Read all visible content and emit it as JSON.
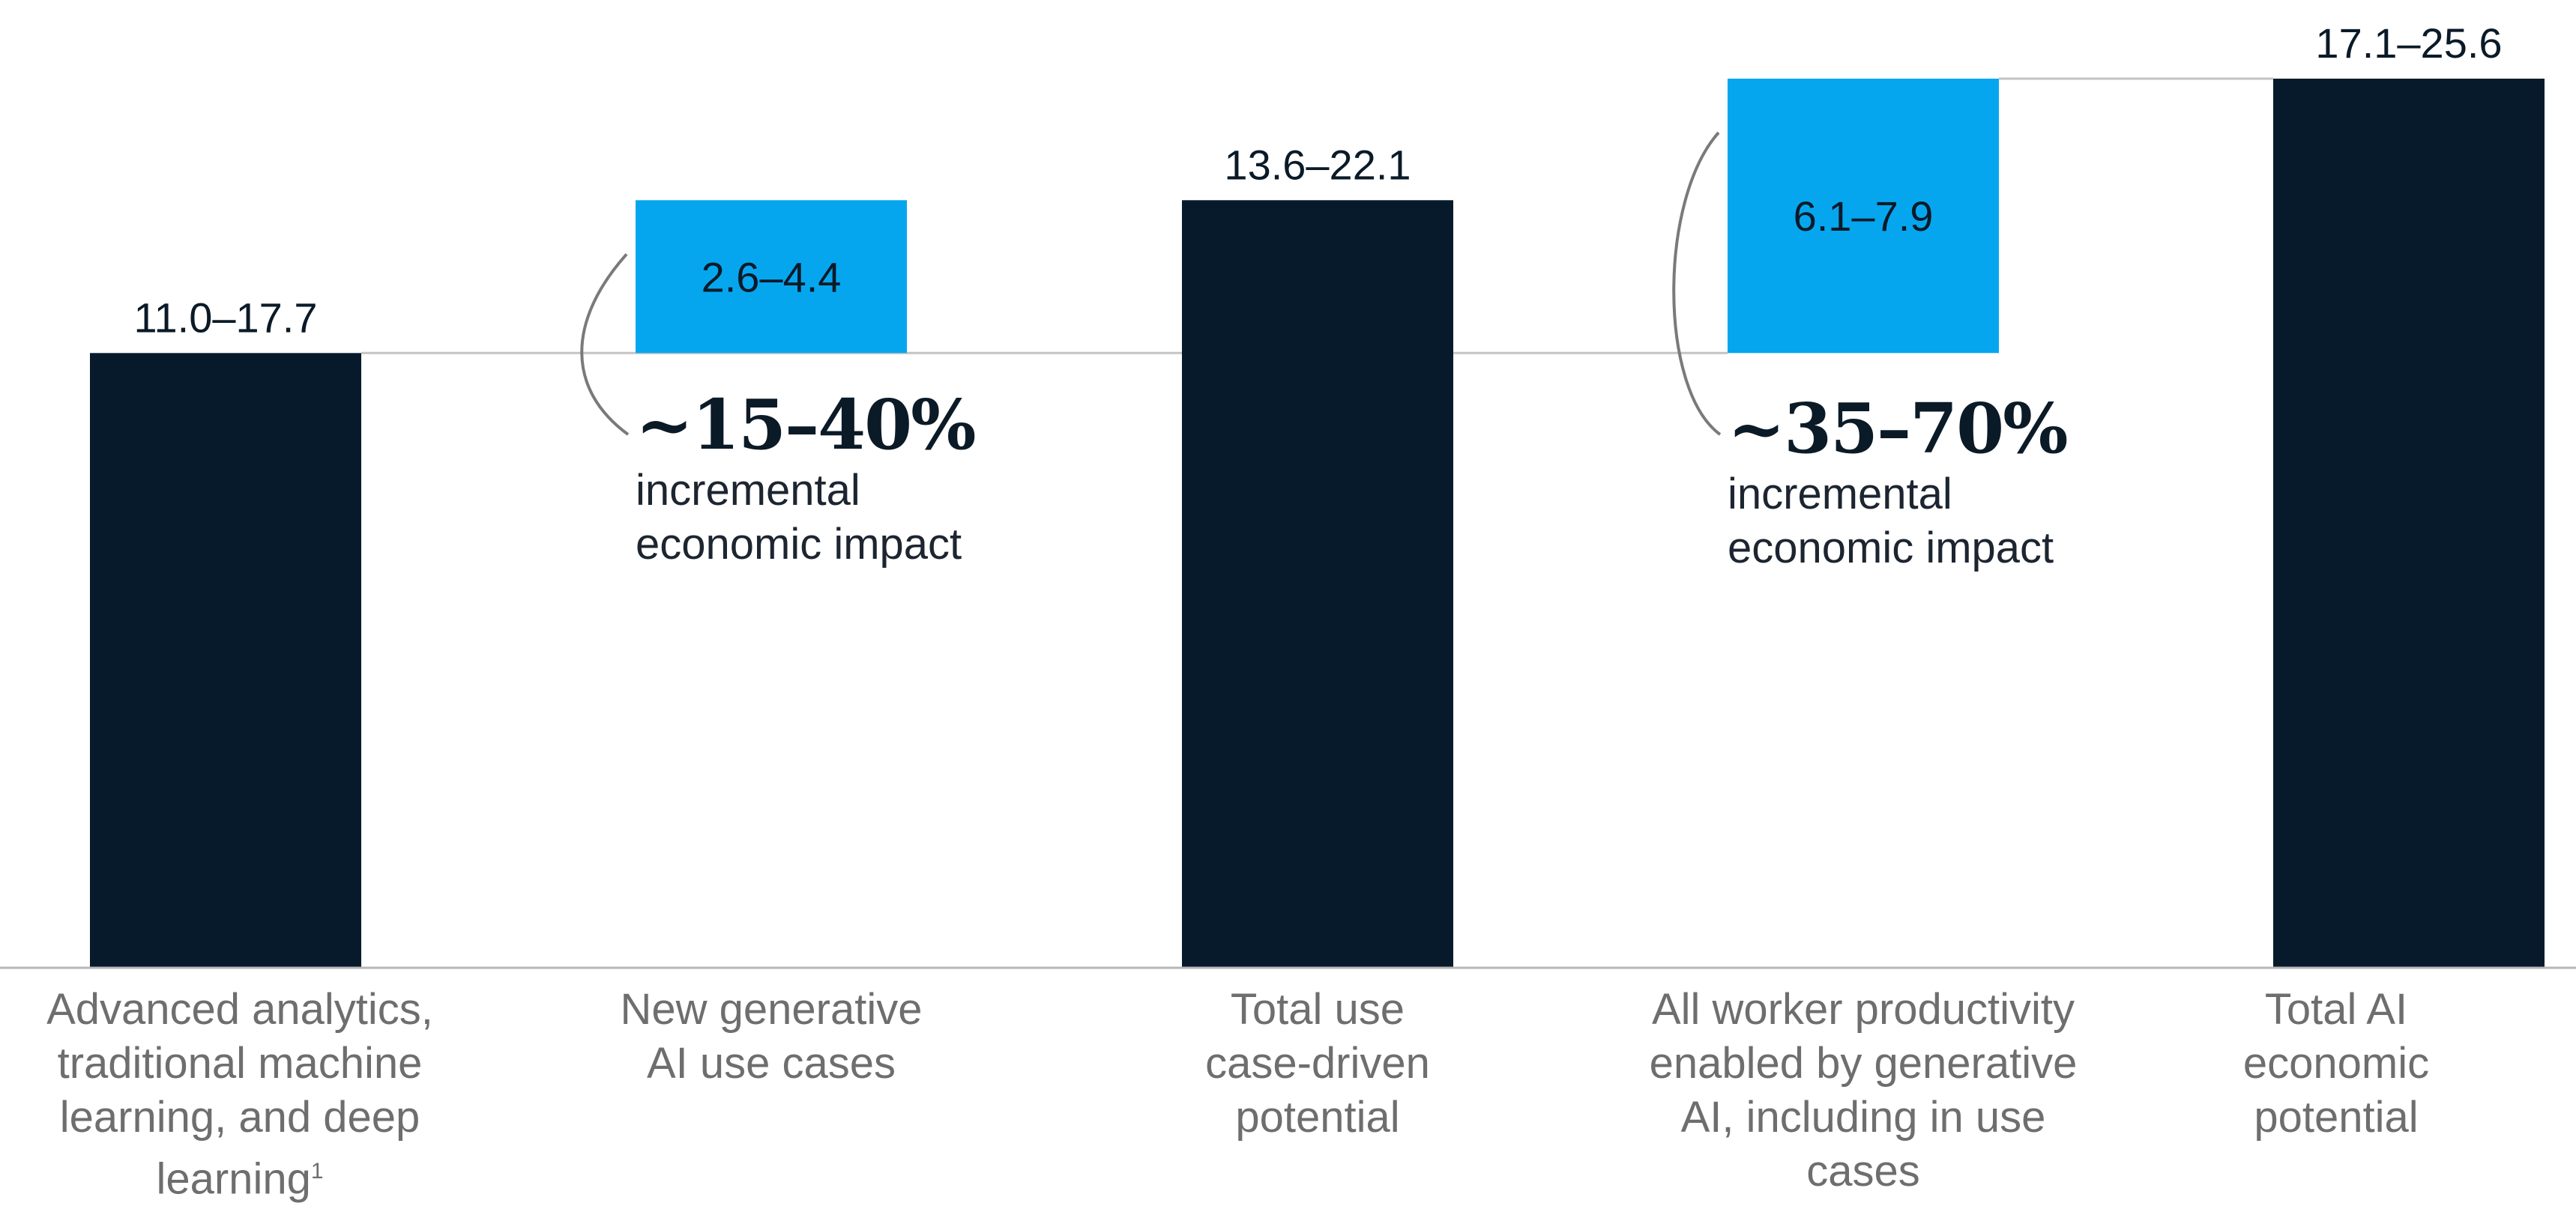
{
  "chart_data": {
    "type": "bar",
    "subtype": "waterfall",
    "categories": [
      "Advanced analytics, traditional machine learning, and deep learning",
      "New generative AI use cases",
      "Total use case-driven potential",
      "All worker productivity enabled by generative AI, including in use cases",
      "Total AI economic potential"
    ],
    "category_lines": [
      [
        "Advanced analytics,",
        "traditional machine",
        "learning, and deep",
        "learning"
      ],
      [
        "New generative",
        "AI use cases"
      ],
      [
        "Total use",
        "case-driven",
        "potential"
      ],
      [
        "All worker productivity",
        "enabled by generative",
        "AI, including in use",
        "cases"
      ],
      [
        "Total AI",
        "economic",
        "potential"
      ]
    ],
    "footnote_marker": "1",
    "bars": [
      {
        "kind": "total",
        "low": 11.0,
        "high": 17.7,
        "base": 0,
        "top": 17.7,
        "label": "11.0–17.7"
      },
      {
        "kind": "increment",
        "low": 2.6,
        "high": 4.4,
        "base": 17.7,
        "top": 22.1,
        "label": "2.6–4.4"
      },
      {
        "kind": "total",
        "low": 13.6,
        "high": 22.1,
        "base": 0,
        "top": 22.1,
        "label": "13.6–22.1"
      },
      {
        "kind": "increment",
        "low": 6.1,
        "high": 7.9,
        "base": 17.7,
        "top": 25.6,
        "label": "6.1–7.9"
      },
      {
        "kind": "total",
        "low": 17.1,
        "high": 25.6,
        "base": 0,
        "top": 25.6,
        "label": "17.1–25.6"
      }
    ],
    "ylim": [
      0,
      25.6
    ],
    "grid": false,
    "colors": {
      "total": "#061a2b",
      "increment": "#06a6ef",
      "connector": "#c4c4c4",
      "baseline": "#b7b7b7",
      "bracket": "#7a7a7a"
    },
    "annotations": [
      {
        "pct": "~15–40%",
        "text_lines": [
          "incremental",
          "economic impact"
        ]
      },
      {
        "pct": "~35–70%",
        "text_lines": [
          "incremental",
          "economic impact"
        ]
      }
    ]
  }
}
